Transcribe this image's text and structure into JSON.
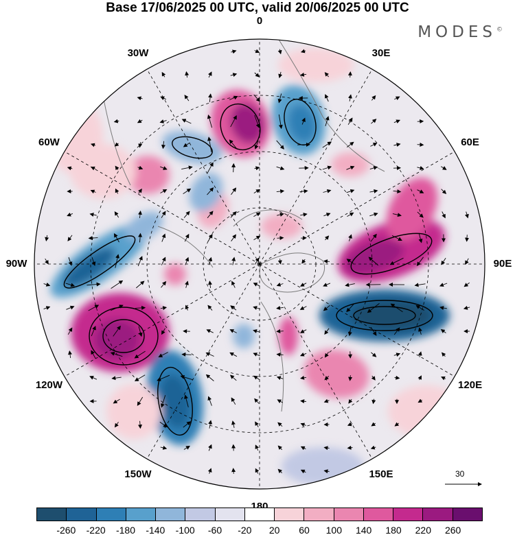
{
  "title": "Base 17/06/2025 00 UTC, valid 20/06/2025 00 UTC",
  "brand": "MODES",
  "brand_mark": "©",
  "longitude_labels": [
    {
      "text": "0",
      "lon": 0
    },
    {
      "text": "30E",
      "lon": 30
    },
    {
      "text": "60E",
      "lon": 60
    },
    {
      "text": "90E",
      "lon": 90
    },
    {
      "text": "120E",
      "lon": 120
    },
    {
      "text": "150E",
      "lon": 150
    },
    {
      "text": "180",
      "lon": 180
    },
    {
      "text": "150W",
      "lon": -150
    },
    {
      "text": "120W",
      "lon": -120
    },
    {
      "text": "90W",
      "lon": -90
    },
    {
      "text": "60W",
      "lon": -60
    },
    {
      "text": "30W",
      "lon": -30
    }
  ],
  "vector_reference": {
    "label": "30"
  },
  "colorbar": {
    "colors": [
      "#1e4e6e",
      "#1f6396",
      "#2e7fb5",
      "#58a0cc",
      "#90b6da",
      "#c2c9e4",
      "#e3e3ef",
      "#ffffff",
      "#f7d3d9",
      "#f2aec3",
      "#ea86b0",
      "#df599e",
      "#c42a8e",
      "#9b1a80",
      "#6a0f6e"
    ],
    "ticks": [
      "-260",
      "-220",
      "-180",
      "-140",
      "-100",
      "-60",
      "-20",
      "20",
      "60",
      "100",
      "140",
      "180",
      "220",
      "260"
    ]
  },
  "fields": {
    "color_scale": [
      "#1e4e6e",
      "#1f6396",
      "#2e7fb5",
      "#58a0cc",
      "#90b6da",
      "#c2c9e4",
      "#e3e3ef",
      "#ffffff",
      "#f7d3d9",
      "#f2aec3",
      "#ea86b0",
      "#df599e",
      "#c42a8e",
      "#9b1a80",
      "#6a0f6e"
    ]
  }
}
